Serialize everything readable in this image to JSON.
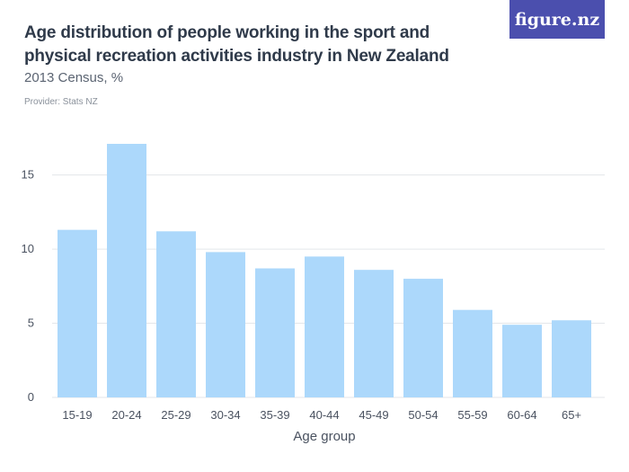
{
  "header": {
    "title": "Age distribution of people working in the sport and physical recreation activities industry in New Zealand",
    "subtitle": "2013 Census, %",
    "provider": "Provider: Stats NZ",
    "logo_text": "figure.nz"
  },
  "colors": {
    "bar": "#acd8fb",
    "logo_bg": "#4b4fae",
    "title": "#2f3a4a"
  },
  "chart_data": {
    "type": "bar",
    "title": "Age distribution of people working in the sport and physical recreation activities industry in New Zealand",
    "subtitle": "2013 Census, %",
    "xlabel": "Age group",
    "ylabel": "",
    "categories": [
      "15-19",
      "20-24",
      "25-29",
      "30-34",
      "35-39",
      "40-44",
      "45-49",
      "50-54",
      "55-59",
      "60-64",
      "65+"
    ],
    "values": [
      11.3,
      17.1,
      11.2,
      9.8,
      8.7,
      9.5,
      8.6,
      8.0,
      5.9,
      4.9,
      5.2
    ],
    "ylim": [
      0,
      17.1
    ],
    "yticks": [
      0,
      5,
      10,
      15
    ],
    "grid": true
  }
}
